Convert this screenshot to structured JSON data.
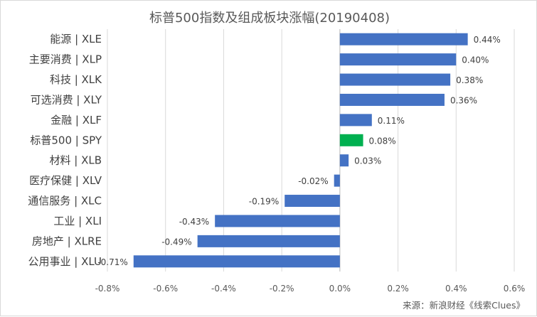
{
  "chart_data": {
    "type": "bar",
    "orientation": "horizontal",
    "title": "标普500指数及组成板块涨幅(20190408)",
    "categories": [
      "能源 | XLE",
      "主要消费 | XLP",
      "科技 | XLK",
      "可选消费 | XLY",
      "金融 | XLF",
      "标普500 | SPY",
      "材料 | XLB",
      "医疗保健 | XLV",
      "通信服务 | XLC",
      "工业 | XLI",
      "房地产 | XLRE",
      "公用事业 | XLU"
    ],
    "values": [
      0.44,
      0.4,
      0.38,
      0.36,
      0.11,
      0.08,
      0.03,
      -0.02,
      -0.19,
      -0.43,
      -0.49,
      -0.71
    ],
    "value_labels": [
      "0.44%",
      "0.40%",
      "0.38%",
      "0.36%",
      "0.11%",
      "0.08%",
      "0.03%",
      "-0.02%",
      "-0.19%",
      "-0.43%",
      "-0.49%",
      "-0.71%"
    ],
    "xlim": [
      -0.8,
      0.6
    ],
    "x_ticks": [
      -0.8,
      -0.6,
      -0.4,
      -0.2,
      0.0,
      0.2,
      0.4,
      0.6
    ],
    "x_tick_labels": [
      "-0.8%",
      "-0.6%",
      "-0.4%",
      "-0.2%",
      "0.0%",
      "0.2%",
      "0.4%",
      "0.6%"
    ],
    "bar_color": "#4472c4",
    "highlight_index": 5,
    "highlight_color": "#00b050",
    "grid": "vertical",
    "source": "来源：新浪财经《线索Clues》"
  }
}
